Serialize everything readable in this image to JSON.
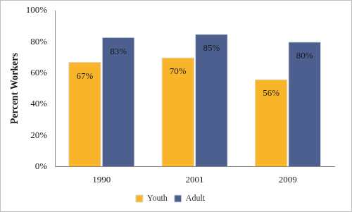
{
  "chart_data": {
    "type": "bar",
    "y_label": "Percent Workers",
    "categories": [
      "1990",
      "2001",
      "2009"
    ],
    "series": [
      {
        "name": "Youth",
        "color": "#f9b52a",
        "values": [
          67,
          70,
          56
        ],
        "value_labels": [
          "67%",
          "70%",
          "56%"
        ]
      },
      {
        "name": "Adult",
        "color": "#4d5f8f",
        "values": [
          83,
          85,
          80
        ],
        "value_labels": [
          "83%",
          "85%",
          "80%"
        ]
      }
    ],
    "ylim": [
      0,
      100
    ],
    "yticks": [
      {
        "value": 0,
        "label": "0%"
      },
      {
        "value": 20,
        "label": "20%"
      },
      {
        "value": 40,
        "label": "40%"
      },
      {
        "value": 60,
        "label": "60%"
      },
      {
        "value": 80,
        "label": "80%"
      },
      {
        "value": 100,
        "label": "100%"
      }
    ],
    "grid": false,
    "legend": "bottom",
    "data_labels": true
  }
}
